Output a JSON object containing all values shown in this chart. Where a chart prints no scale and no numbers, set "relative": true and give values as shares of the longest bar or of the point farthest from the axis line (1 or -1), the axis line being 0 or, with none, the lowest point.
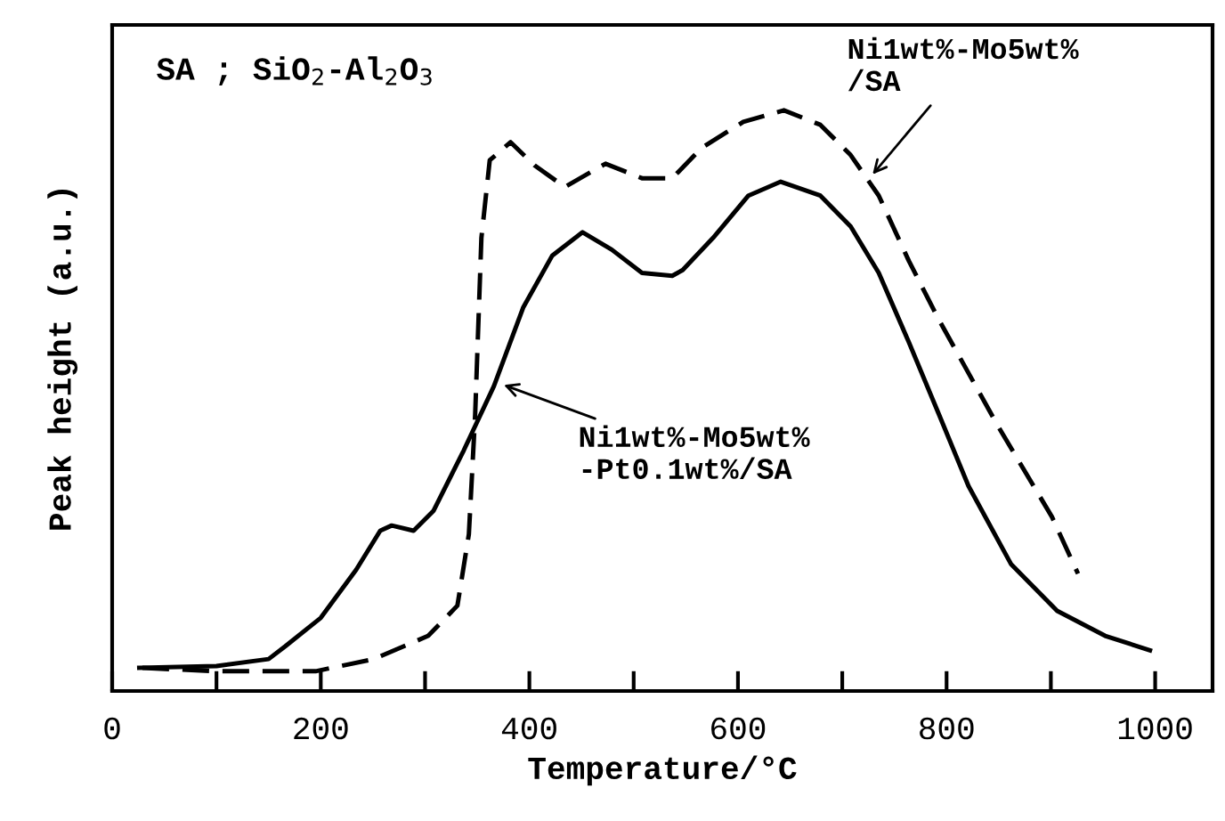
{
  "chart_data": {
    "type": "line",
    "relative": true,
    "xlabel": "Temperature/°C",
    "ylabel": "Peak height (a.u.)",
    "xlim": [
      0,
      1055
    ],
    "xticks": [
      0,
      {
        "value": 100,
        "label": null
      },
      200,
      {
        "value": 300,
        "label": null
      },
      400,
      {
        "value": 500,
        "label": null
      },
      600,
      {
        "value": 700,
        "label": null
      },
      800,
      {
        "value": 900,
        "label": null
      },
      1000
    ],
    "grid": false,
    "legend": false,
    "marker": "none",
    "series": [
      {
        "color": "#000000",
        "line_style": "solid",
        "x": [
          26,
          100,
          150,
          166,
          200,
          234,
          257,
          268,
          289,
          308,
          337,
          366,
          394,
          422,
          451,
          479,
          508,
          537,
          547,
          576,
          610,
          641,
          679,
          708,
          735,
          764,
          793,
          821,
          862,
          906,
          952,
          995
        ],
        "values": [
          0.04,
          0.043,
          0.055,
          0.077,
          0.126,
          0.209,
          0.276,
          0.285,
          0.276,
          0.31,
          0.414,
          0.525,
          0.66,
          0.75,
          0.79,
          0.76,
          0.72,
          0.715,
          0.725,
          0.78,
          0.853,
          0.877,
          0.853,
          0.8,
          0.72,
          0.6,
          0.475,
          0.353,
          0.218,
          0.138,
          0.095,
          0.07
        ]
      },
      {
        "color": "#000000",
        "line_style": "dashed",
        "x": [
          29,
          97,
          195,
          251,
          303,
          331,
          342,
          348,
          354,
          362,
          382,
          405,
          434,
          473,
          508,
          537,
          565,
          605,
          644,
          679,
          708,
          735,
          764,
          793,
          850,
          901,
          926
        ],
        "values": [
          0.04,
          0.034,
          0.034,
          0.055,
          0.095,
          0.147,
          0.27,
          0.475,
          0.78,
          0.914,
          0.945,
          0.905,
          0.868,
          0.908,
          0.883,
          0.883,
          0.935,
          0.98,
          1.0,
          0.975,
          0.923,
          0.853,
          0.74,
          0.638,
          0.454,
          0.3,
          0.202
        ]
      }
    ],
    "annotations": [
      "SA ; SiO$_{2}$-Al$_{2}$O$_{3}$",
      {
        "text": "Ni1wt%-Mo5wt%\n/SA",
        "x": 726,
        "y": 0.883
      },
      {
        "text": "Ni1wt%-Mo5wt%\n-Pt0.1wt%/SA",
        "x": 371,
        "y": 0.53
      }
    ]
  }
}
